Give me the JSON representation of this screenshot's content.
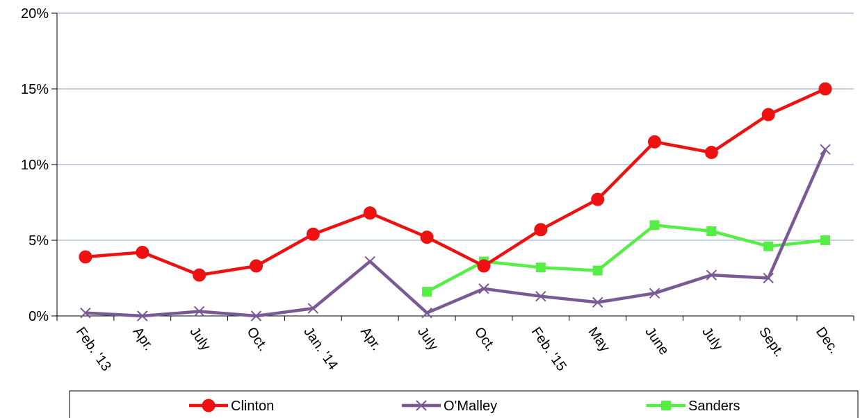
{
  "chart_data": {
    "type": "line",
    "title": "",
    "xlabel": "",
    "ylabel": "",
    "categories": [
      "Feb. '13",
      "Apr.",
      "July",
      "Oct.",
      "Jan. '14",
      "Apr.",
      "July",
      "Oct.",
      "Feb. '15",
      "May",
      "June",
      "July",
      "Sept.",
      "Dec."
    ],
    "ylim": [
      0,
      20
    ],
    "yticks": [
      "0%",
      "5%",
      "10%",
      "15%",
      "20%"
    ],
    "grid": true,
    "legend_position": "bottom",
    "series": [
      {
        "name": "Clinton",
        "color": "#ee1111",
        "marker": "circle",
        "values": [
          3.9,
          4.2,
          2.7,
          3.3,
          5.4,
          6.8,
          5.2,
          3.3,
          5.7,
          7.7,
          11.5,
          10.8,
          13.3,
          15.0
        ]
      },
      {
        "name": "O'Malley",
        "color": "#7a5a94",
        "marker": "x",
        "values": [
          0.2,
          0.0,
          0.3,
          0.0,
          0.5,
          3.6,
          0.2,
          1.8,
          1.3,
          0.9,
          1.5,
          2.7,
          2.5,
          11.0
        ]
      },
      {
        "name": "Sanders",
        "color": "#55ee44",
        "marker": "square",
        "values": [
          null,
          null,
          null,
          null,
          null,
          null,
          1.6,
          3.6,
          3.2,
          3.0,
          6.0,
          5.6,
          4.6,
          5.0
        ]
      }
    ]
  }
}
